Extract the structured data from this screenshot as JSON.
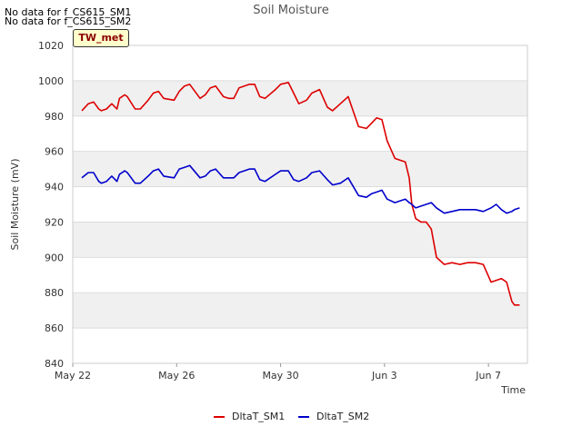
{
  "header": {
    "nodata_lines": [
      "No data for f_CS615_SM1",
      "No data for f_CS615_SM2"
    ],
    "badge": "TW_met"
  },
  "chart_data": {
    "type": "line",
    "title": "Soil Moisture",
    "xlabel": "Time",
    "ylabel": "Soil Moisture (mV)",
    "ylim": [
      840,
      1020
    ],
    "xlim": [
      0,
      17.5
    ],
    "yticks": [
      840,
      860,
      880,
      900,
      920,
      940,
      960,
      980,
      1000,
      1020
    ],
    "xticks": [
      {
        "value": 0,
        "label": "May 22"
      },
      {
        "value": 4,
        "label": "May 26"
      },
      {
        "value": 8,
        "label": "May 30"
      },
      {
        "value": 12,
        "label": "Jun 3"
      },
      {
        "value": 16,
        "label": "Jun 7"
      }
    ],
    "grid": true,
    "legend_position": "bottom-center",
    "series": [
      {
        "name": "DltaT_SM1",
        "color": "#dd0000",
        "x": [
          0.35,
          0.6,
          0.8,
          1.0,
          1.1,
          1.3,
          1.5,
          1.7,
          1.8,
          2.0,
          2.1,
          2.4,
          2.6,
          2.9,
          3.1,
          3.3,
          3.5,
          3.9,
          4.1,
          4.3,
          4.5,
          4.9,
          5.1,
          5.3,
          5.5,
          5.8,
          6.0,
          6.2,
          6.4,
          6.8,
          7.0,
          7.2,
          7.4,
          7.8,
          8.0,
          8.3,
          8.5,
          8.7,
          9.0,
          9.2,
          9.5,
          9.8,
          10.0,
          10.3,
          10.6,
          11.0,
          11.3,
          11.5,
          11.7,
          11.9,
          12.1,
          12.4,
          12.6,
          12.8,
          12.95,
          13.05,
          13.2,
          13.4,
          13.6,
          13.8,
          14.0,
          14.3,
          14.6,
          14.9,
          15.2,
          15.5,
          15.8,
          16.1,
          16.3,
          16.5,
          16.7,
          16.9,
          17.0,
          17.2
        ],
        "values": [
          983,
          987,
          988,
          984,
          983,
          984,
          987,
          984,
          990,
          992,
          991,
          984,
          984,
          989,
          993,
          994,
          990,
          989,
          994,
          997,
          998,
          990,
          992,
          996,
          997,
          991,
          990,
          990,
          996,
          998,
          998,
          991,
          990,
          995,
          998,
          999,
          993,
          987,
          989,
          993,
          995,
          985,
          983,
          987,
          991,
          974,
          973,
          976,
          979,
          978,
          966,
          956,
          955,
          954,
          945,
          930,
          922,
          920,
          920,
          916,
          900,
          896,
          897,
          896,
          897,
          897,
          896,
          886,
          887,
          888,
          886,
          875,
          873,
          873
        ]
      },
      {
        "name": "DltaT_SM2",
        "color": "#0000cc",
        "x": [
          0.35,
          0.6,
          0.8,
          1.0,
          1.1,
          1.3,
          1.5,
          1.7,
          1.8,
          2.0,
          2.1,
          2.4,
          2.6,
          2.9,
          3.1,
          3.3,
          3.5,
          3.9,
          4.1,
          4.3,
          4.5,
          4.9,
          5.1,
          5.3,
          5.5,
          5.8,
          6.0,
          6.2,
          6.4,
          6.8,
          7.0,
          7.2,
          7.4,
          7.8,
          8.0,
          8.3,
          8.5,
          8.7,
          9.0,
          9.2,
          9.5,
          9.8,
          10.0,
          10.3,
          10.6,
          11.0,
          11.3,
          11.5,
          11.7,
          11.9,
          12.1,
          12.4,
          12.6,
          12.8,
          12.95,
          13.05,
          13.2,
          13.4,
          13.6,
          13.8,
          14.0,
          14.3,
          14.6,
          14.9,
          15.2,
          15.5,
          15.8,
          16.1,
          16.3,
          16.5,
          16.7,
          16.9,
          17.0,
          17.2
        ],
        "values": [
          945,
          948,
          948,
          943,
          942,
          943,
          946,
          943,
          947,
          949,
          948,
          942,
          942,
          946,
          949,
          950,
          946,
          945,
          950,
          951,
          952,
          945,
          946,
          949,
          950,
          945,
          945,
          945,
          948,
          950,
          950,
          944,
          943,
          947,
          949,
          949,
          944,
          943,
          945,
          948,
          949,
          944,
          941,
          942,
          945,
          935,
          934,
          936,
          937,
          938,
          933,
          931,
          932,
          933,
          931,
          930,
          928,
          929,
          930,
          931,
          928,
          925,
          926,
          927,
          927,
          927,
          926,
          928,
          930,
          927,
          925,
          926,
          927,
          928
        ]
      }
    ]
  }
}
